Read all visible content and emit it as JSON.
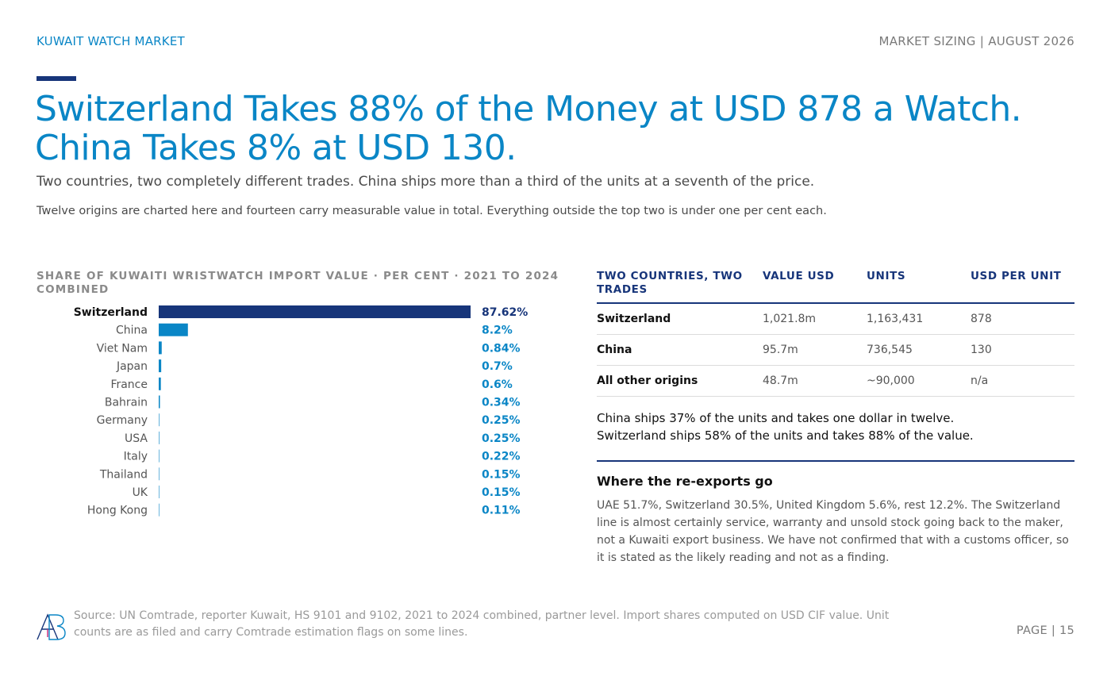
{
  "header": {
    "left": "KUWAIT WATCH MARKET",
    "right": "MARKET SIZING | AUGUST 2026"
  },
  "headline": {
    "line1": "Switzerland Takes 88% of the Money at USD 878 a Watch.",
    "line2": "China Takes 8% at USD 130."
  },
  "subtitle": "Two countries, two completely different trades. China ships more than a third of the units at a seventh of the price.",
  "note": "Twelve origins are charted here and fourteen carry measurable value in total. Everything outside the top two is under one per cent each.",
  "colors": {
    "accent": "#0a86c6",
    "navy": "#17357a",
    "bar_other": "#0a86c6"
  },
  "chart_data": {
    "type": "bar",
    "orientation": "horizontal",
    "title": "SHARE OF KUWAITI WRISTWATCH IMPORT VALUE · PER CENT · 2021 TO 2024 COMBINED",
    "categories": [
      "Switzerland",
      "China",
      "Viet Nam",
      "Japan",
      "France",
      "Bahrain",
      "Germany",
      "USA",
      "Italy",
      "Thailand",
      "UK",
      "Hong Kong"
    ],
    "values": [
      87.62,
      8.2,
      0.84,
      0.7,
      0.6,
      0.34,
      0.25,
      0.25,
      0.22,
      0.15,
      0.15,
      0.11
    ],
    "value_labels": [
      "87.62%",
      "8.2%",
      "0.84%",
      "0.7%",
      "0.6%",
      "0.34%",
      "0.25%",
      "0.25%",
      "0.22%",
      "0.15%",
      "0.15%",
      "0.11%"
    ],
    "highlight": "Switzerland",
    "xlim": [
      0,
      87.62
    ],
    "grid": false,
    "legend": "none"
  },
  "table": {
    "headers": [
      "TWO COUNTRIES, TWO TRADES",
      "VALUE USD",
      "UNITS",
      "USD PER UNIT"
    ],
    "rows": [
      [
        "Switzerland",
        "1,021.8m",
        "1,163,431",
        "878"
      ],
      [
        "China",
        "95.7m",
        "736,545",
        "130"
      ],
      [
        "All other origins",
        "48.7m",
        "~90,000",
        "n/a"
      ]
    ]
  },
  "callout": "China ships 37% of the units and takes one dollar in twelve. Switzerland ships 58% of the units and takes 88% of the value.",
  "reexports": {
    "heading": "Where the re-exports go",
    "body": "UAE 51.7%, Switzerland 30.5%, United Kingdom 5.6%, rest 12.2%. The Switzerland line is almost certainly service, warranty and unsold stock going back to the maker, not a Kuwaiti export business. We have not confirmed that with a customs officer, so it is stated as the likely reading and not as a finding."
  },
  "footer": {
    "logo_icon": "ab-monogram-logo",
    "source": "Source: UN Comtrade, reporter Kuwait, HS 9101 and 9102, 2021 to 2024 combined, partner level. Import shares computed on USD CIF value. Unit counts are as filed and carry Comtrade estimation flags on some lines.",
    "page": "PAGE | 15"
  }
}
